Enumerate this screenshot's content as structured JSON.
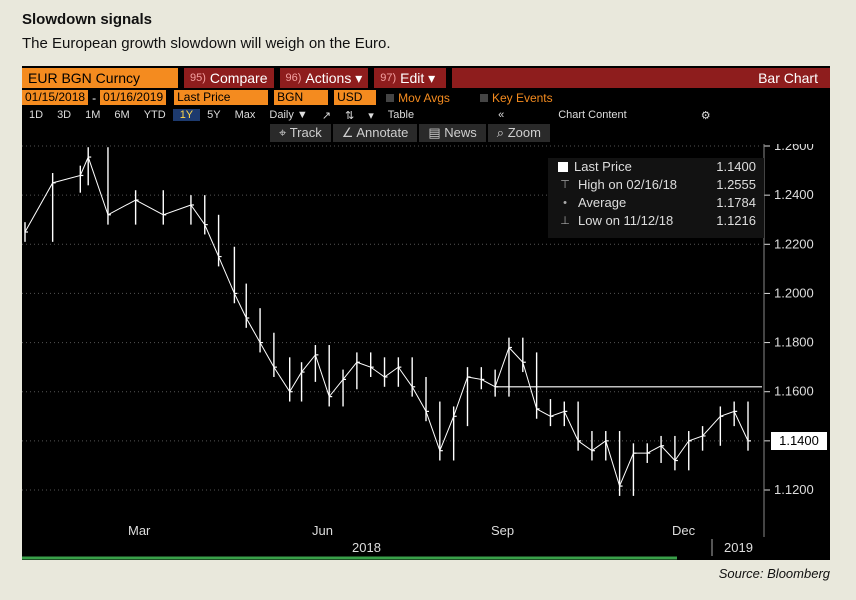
{
  "headline": "Slowdown signals",
  "subhead": "The European growth slowdown will weigh on the Euro.",
  "source": "Source: Bloomberg",
  "terminal": {
    "ticker": "EUR BGN Curncy",
    "menu": [
      {
        "code": "95)",
        "label": "Compare"
      },
      {
        "code": "96)",
        "label": "Actions ▾"
      },
      {
        "code": "97)",
        "label": "Edit ▾"
      }
    ],
    "chart_type_label": "Bar Chart",
    "start_date": "01/15/2018",
    "end_date": "01/16/2019",
    "field": "Last Price",
    "source_field": "BGN",
    "currency": "USD",
    "mov_avgs": "Mov Avgs",
    "key_events": "Key Events",
    "periods": [
      "1D",
      "3D",
      "1M",
      "6M",
      "YTD",
      "1Y",
      "5Y",
      "Max"
    ],
    "active_period": "1Y",
    "frequency": "Daily ▼",
    "table_label": "Table",
    "chart_content": "Chart Content",
    "tools": [
      {
        "icon": "crosshair-icon",
        "glyph": "⌖",
        "label": "Track"
      },
      {
        "icon": "annotate-icon",
        "glyph": "∠",
        "label": "Annotate"
      },
      {
        "icon": "news-icon",
        "glyph": "▤",
        "label": "News"
      },
      {
        "icon": "zoom-icon",
        "glyph": "⌕",
        "label": "Zoom"
      }
    ],
    "legend": [
      {
        "label": "Last Price",
        "value": "1.1400"
      },
      {
        "label": "High on 02/16/18",
        "value": "1.2555"
      },
      {
        "label": "Average",
        "value": "1.1784"
      },
      {
        "label": "Low on 11/12/18",
        "value": "1.1216"
      }
    ],
    "current_price": "1.1400",
    "year_labels": [
      "2018",
      "2019"
    ],
    "month_labels": [
      "Mar",
      "Jun",
      "Sep",
      "Dec"
    ],
    "colors": {
      "accent": "#f48b1f",
      "menu": "#8e1d1d",
      "bars": "#ffffff",
      "background": "#000000"
    }
  },
  "chart_data": {
    "type": "line",
    "title": "",
    "x": [
      "2018-01-15",
      "2018-01-29",
      "2018-02-12",
      "2018-02-16",
      "2018-02-26",
      "2018-03-12",
      "2018-03-26",
      "2018-04-09",
      "2018-04-16",
      "2018-04-23",
      "2018-05-01",
      "2018-05-07",
      "2018-05-14",
      "2018-05-21",
      "2018-05-29",
      "2018-06-04",
      "2018-06-11",
      "2018-06-18",
      "2018-06-25",
      "2018-07-02",
      "2018-07-09",
      "2018-07-16",
      "2018-07-23",
      "2018-07-30",
      "2018-08-06",
      "2018-08-13",
      "2018-08-20",
      "2018-08-27",
      "2018-09-03",
      "2018-09-10",
      "2018-09-17",
      "2018-09-24",
      "2018-10-01",
      "2018-10-08",
      "2018-10-15",
      "2018-10-22",
      "2018-10-29",
      "2018-11-05",
      "2018-11-12",
      "2018-11-19",
      "2018-11-26",
      "2018-12-03",
      "2018-12-10",
      "2018-12-17",
      "2018-12-24",
      "2019-01-02",
      "2019-01-09",
      "2019-01-16"
    ],
    "y": [
      1.225,
      1.245,
      1.248,
      1.2555,
      1.232,
      1.238,
      1.232,
      1.236,
      1.228,
      1.215,
      1.2,
      1.19,
      1.18,
      1.17,
      1.16,
      1.168,
      1.175,
      1.158,
      1.165,
      1.172,
      1.17,
      1.166,
      1.17,
      1.162,
      1.152,
      1.136,
      1.15,
      1.166,
      1.165,
      1.162,
      1.178,
      1.172,
      1.153,
      1.15,
      1.152,
      1.14,
      1.136,
      1.14,
      1.1216,
      1.135,
      1.135,
      1.138,
      1.132,
      1.14,
      1.142,
      1.15,
      1.152,
      1.14
    ],
    "xlabel": "",
    "ylabel": "",
    "ylim": [
      1.1,
      1.27
    ],
    "yticks": [
      1.26,
      1.24,
      1.22,
      1.2,
      1.18,
      1.16,
      1.14,
      1.12
    ],
    "ytick_labels": [
      "1.2600",
      "1.2400",
      "1.2200",
      "1.2000",
      "1.1800",
      "1.1600",
      "1.1400",
      "1.1200"
    ],
    "reference_level": 1.162,
    "grid": true,
    "legend": "top-right"
  }
}
